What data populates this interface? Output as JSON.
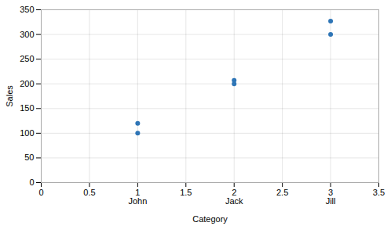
{
  "chart_data": {
    "type": "scatter",
    "xlabel": "Category",
    "ylabel": "Sales",
    "x": [
      1,
      1,
      2,
      2,
      3,
      3
    ],
    "values": [
      100,
      120,
      200,
      207,
      300,
      327
    ],
    "color": "#2E75B6",
    "xlim": [
      0,
      3.5
    ],
    "xticks": [
      0,
      0.5,
      1,
      1.5,
      2,
      2.5,
      3,
      3.5
    ],
    "ylim": [
      0,
      350
    ],
    "yticks": [
      0,
      50,
      100,
      150,
      200,
      250,
      300,
      350
    ],
    "annotations": [
      {
        "x": 1,
        "text": "John"
      },
      {
        "x": 2,
        "text": "Jack"
      },
      {
        "x": 3,
        "text": "Jill"
      }
    ],
    "grid": true
  }
}
